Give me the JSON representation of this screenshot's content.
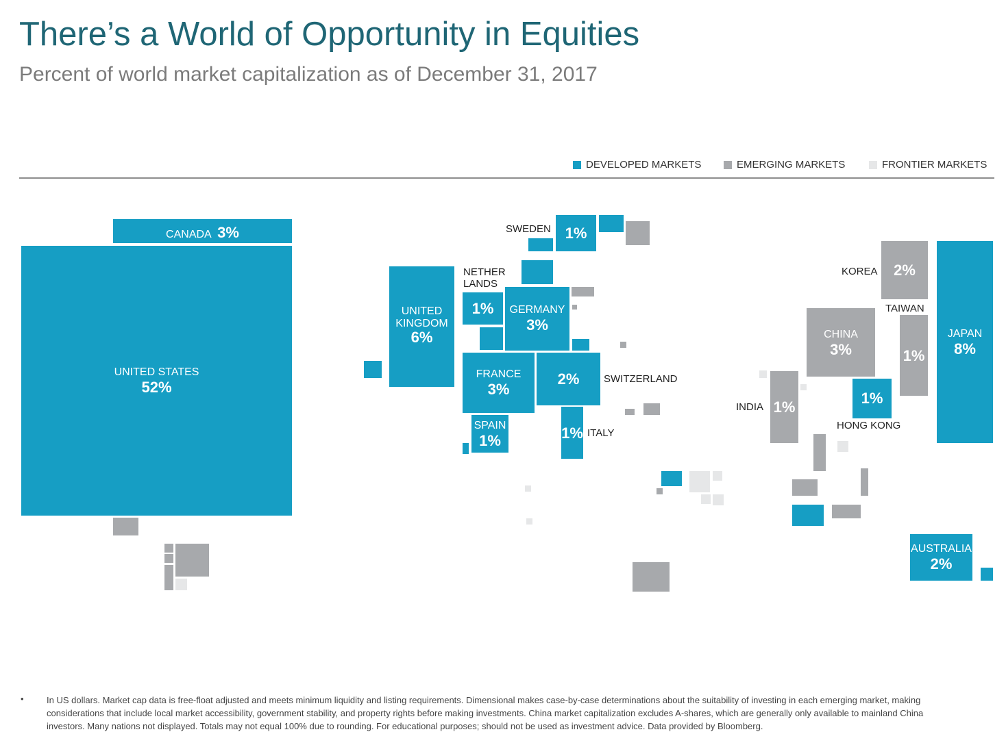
{
  "title": "There’s a World of Opportunity in Equities",
  "subtitle": "Percent of world market capitalization as of December 31, 2017",
  "colors": {
    "developed": "#169ec4",
    "emerging": "#a7a9ac",
    "frontier": "#e6e7e8",
    "title": "#1f6675"
  },
  "legend": {
    "developed": "DEVELOPED MARKETS",
    "emerging": "EMERGING MARKETS",
    "frontier": "FRONTIER MARKETS"
  },
  "countries": {
    "canada": {
      "name": "CANADA",
      "value": "3%"
    },
    "us": {
      "name": "UNITED STATES",
      "value": "52%"
    },
    "sweden": {
      "name": "SWEDEN",
      "value": "1%"
    },
    "netherlands": {
      "name_line1": "NETHER",
      "name_line2": "LANDS",
      "value": "1%"
    },
    "uk": {
      "name_line1": "UNITED",
      "name_line2": "KINGDOM",
      "value": "6%"
    },
    "germany": {
      "name": "GERMANY",
      "value": "3%"
    },
    "france": {
      "name": "FRANCE",
      "value": "3%"
    },
    "switzerland": {
      "name": "SWITZERLAND",
      "value": "2%"
    },
    "spain": {
      "name": "SPAIN",
      "value": "1%"
    },
    "italy": {
      "name": "ITALY",
      "value": "1%"
    },
    "korea": {
      "name": "KOREA",
      "value": "2%"
    },
    "taiwan": {
      "name": "TAIWAN",
      "value": "1%"
    },
    "china": {
      "name": "CHINA",
      "value": "3%"
    },
    "japan": {
      "name": "JAPAN",
      "value": "8%"
    },
    "india": {
      "name": "INDIA",
      "value": "1%"
    },
    "hongkong": {
      "name": "HONG KONG",
      "value": "1%"
    },
    "australia": {
      "name": "AUSTRALIA",
      "value": "2%"
    }
  },
  "footnote": {
    "bullet": "•",
    "text": "In US dollars. Market cap data is free-float adjusted and meets minimum liquidity and listing requirements. Dimensional makes case-by-case determinations about the suitability of investing in each emerging market, making considerations that include local market accessibility, government stability, and property rights before making investments. China market capitalization excludes A-shares, which are generally only available to mainland China investors. Many nations not displayed. Totals may not equal 100% due to rounding. For educational purposes; should not be used as investment advice. Data provided by Bloomberg."
  }
}
